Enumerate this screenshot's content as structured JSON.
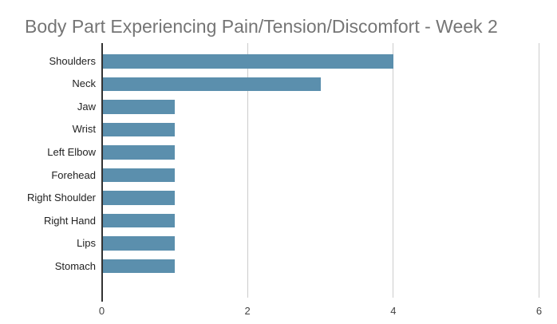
{
  "chart": {
    "title": "Body Part Experiencing Pain/Tension/Discomfort - Week 2"
  },
  "chart_data": {
    "type": "bar",
    "orientation": "horizontal",
    "title": "Body Part Experiencing Pain/Tension/Discomfort - Week 2",
    "categories": [
      "Shoulders",
      "Neck",
      "Jaw",
      "Wrist",
      "Left Elbow",
      "Forehead",
      "Right Shoulder",
      "Right Hand",
      "Lips",
      "Stomach"
    ],
    "values": [
      4,
      3,
      1,
      1,
      1,
      1,
      1,
      1,
      1,
      1
    ],
    "xlabel": "",
    "ylabel": "",
    "xlim": [
      0,
      6
    ],
    "xticks": [
      0,
      2,
      4,
      6
    ],
    "grid": "vertical-only",
    "legend": "none",
    "data_labels": "none",
    "colors": {
      "bar": "#5b8fad",
      "title": "#757575",
      "axis_line": "#333333",
      "gridline": "#cccccc",
      "category_label": "#222222",
      "tick_label": "#444444",
      "background": "#ffffff"
    }
  }
}
